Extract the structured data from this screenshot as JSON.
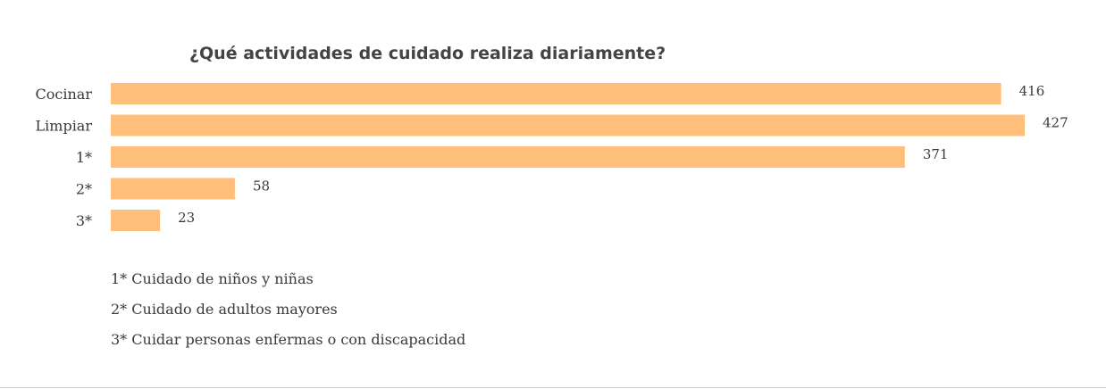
{
  "chart_data": {
    "type": "bar",
    "orientation": "horizontal",
    "title": "¿Qué actividades de cuidado realiza diariamente?",
    "categories": [
      "Cocinar",
      "Limpiar",
      "1*",
      "2*",
      "3*"
    ],
    "values": [
      416,
      427,
      371,
      58,
      23
    ],
    "xlim": [
      0,
      427
    ],
    "bar_color": "#ffbf7a",
    "grid": false,
    "legend": false,
    "notes": [
      "1* Cuidado de niños y niñas",
      "2* Cuidado de adultos mayores",
      "3* Cuidar personas enfermas o con discapacidad"
    ]
  }
}
